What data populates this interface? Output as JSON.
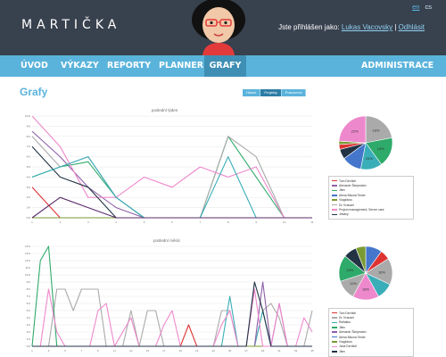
{
  "app": {
    "brand": "MARTIČKA",
    "languages": {
      "active": "en",
      "other": "cs"
    },
    "login_prefix": "Jste přihlášen jako:",
    "user_name": "Lukas Vacovsky",
    "separator": "|",
    "logout": "Odhlásit"
  },
  "nav": {
    "items": [
      "ÚVOD",
      "VÝKAZY",
      "REPORTY",
      "PLANNER",
      "GRAFY"
    ],
    "admin": "ADMINISTRACE",
    "active_index": 4
  },
  "page": {
    "title": "Grafy",
    "toggle": [
      "Hlavní",
      "Projekty",
      "Pracovníci"
    ],
    "toggle_active": 1
  },
  "colors": {
    "header_bg": "#38414e",
    "nav_bg": "#5ab3db",
    "nav_active": "#3f8fb5",
    "accent": "#5ab3db"
  },
  "chart_data": [
    {
      "type": "line",
      "title": "poslední týden",
      "grid": true,
      "x": [
        "1",
        "2",
        "3",
        "4",
        "5",
        "6",
        "7",
        "8",
        "9",
        "10",
        "11"
      ],
      "ylim": [
        0,
        10
      ],
      "y_ticks": [
        "0%",
        "1%",
        "2%",
        "3%",
        "4%",
        "5%",
        "6%",
        "7%",
        "8%",
        "9%",
        "10%"
      ],
      "series": [
        {
          "name": "Tom Derrikel",
          "color": "#dd3333",
          "values": [
            3,
            0,
            0,
            0,
            0,
            0,
            0,
            0,
            0,
            0,
            0
          ]
        },
        {
          "name": "Alexandr Šimpeatón",
          "color": "#8e5fa8",
          "values": [
            8.5,
            6,
            3,
            1,
            0,
            0,
            0,
            0,
            0,
            0,
            0
          ]
        },
        {
          "name": "Jitex",
          "color": "#2eaa6a",
          "values": [
            4,
            5,
            5.5,
            2,
            0,
            0,
            0,
            8,
            4,
            0,
            0
          ]
        },
        {
          "name": "Alena Bisová Tesler",
          "color": "#4477cc",
          "values": [
            0,
            0,
            0,
            0,
            0,
            0,
            0,
            0,
            0,
            0,
            0
          ]
        },
        {
          "name": "Viaglobus",
          "color": "#7a9a33",
          "values": [
            0,
            0,
            0,
            0,
            0,
            0,
            0,
            0,
            0,
            0,
            0
          ]
        },
        {
          "name": "Dr. Krausel",
          "color": "#aaaaaa",
          "values": [
            8,
            5,
            6,
            2,
            0,
            0,
            0,
            8,
            6,
            0,
            0
          ]
        },
        {
          "name": "Project management, Server care",
          "color": "#ee88cc",
          "values": [
            10,
            7,
            2,
            2,
            4,
            3,
            5,
            4,
            5,
            0,
            0
          ]
        },
        {
          "name": "Jesány",
          "color": "#223344",
          "values": [
            7,
            4,
            3,
            0,
            0,
            0,
            0,
            0,
            0,
            0,
            0
          ]
        }
      ],
      "extra_series": [
        {
          "color": "#3aaeb8",
          "values": [
            4,
            5,
            6,
            2,
            0,
            0,
            0,
            6,
            0,
            0,
            0
          ]
        },
        {
          "color": "#5a2a6a",
          "values": [
            0,
            2,
            1,
            0,
            0,
            0,
            0,
            0,
            0,
            0,
            0
          ]
        }
      ],
      "pie": [
        {
          "color": "#aaaaaa",
          "value": 22
        },
        {
          "color": "#2eaa6a",
          "value": 18
        },
        {
          "color": "#3aaeb8",
          "value": 13
        },
        {
          "color": "#4477cc",
          "value": 12
        },
        {
          "color": "#223344",
          "value": 6
        },
        {
          "color": "#dd3333",
          "value": 3
        },
        {
          "color": "#7a9a33",
          "value": 2
        },
        {
          "color": "#ee88cc",
          "value": 24
        }
      ],
      "pie_labels": [
        "22%",
        "18%",
        "13%",
        "24%"
      ]
    },
    {
      "type": "line",
      "title": "poslední měsíc",
      "grid": true,
      "x": [
        "1",
        "2",
        "3",
        "4",
        "5",
        "6",
        "7",
        "8",
        "9",
        "10",
        "11",
        "12",
        "13",
        "14",
        "15",
        "16",
        "17",
        "18",
        "19",
        "20",
        "21",
        "22",
        "23",
        "24",
        "25",
        "26",
        "27",
        "28",
        "29",
        "30",
        "31",
        "32",
        "33",
        "34",
        "35"
      ],
      "ylim": [
        0,
        14
      ],
      "y_ticks": [
        "0%",
        "1%",
        "2%",
        "3%",
        "4%",
        "5%",
        "6%",
        "7%",
        "8%",
        "9%",
        "10%",
        "11%",
        "12%",
        "13%",
        "14%"
      ],
      "series": [
        {
          "name": "Tom Derrikel",
          "color": "#dd3333",
          "values": [
            0,
            0,
            0,
            0,
            0,
            0,
            0,
            0,
            0,
            0,
            0,
            0,
            0,
            0,
            0,
            0,
            0,
            0,
            0,
            3,
            0,
            0,
            0,
            0,
            0,
            0,
            0,
            0,
            0,
            0,
            0,
            0,
            0,
            0,
            0
          ]
        },
        {
          "name": "Dr. Krausel",
          "color": "#aaaaaa",
          "values": [
            0,
            0,
            0,
            8,
            8,
            5,
            8,
            8,
            8,
            0,
            0,
            0,
            5,
            0,
            5,
            5,
            0,
            0,
            0,
            0,
            0,
            0,
            0,
            5,
            5,
            0,
            0,
            0,
            5,
            6,
            4,
            0,
            0,
            0,
            5
          ]
        },
        {
          "name": "Rellaitus",
          "color": "#3aaeb8",
          "values": [
            0,
            0,
            0,
            0,
            0,
            0,
            0,
            0,
            0,
            0,
            0,
            0,
            0,
            0,
            0,
            0,
            0,
            0,
            0,
            0,
            0,
            0,
            0,
            0,
            7,
            0,
            0,
            0,
            5,
            0,
            0,
            0,
            0,
            0,
            0
          ]
        },
        {
          "name": "Jitex",
          "color": "#2eaa6a",
          "values": [
            0,
            12,
            14,
            0,
            0,
            0,
            0,
            0,
            0,
            0,
            0,
            0,
            0,
            0,
            0,
            0,
            0,
            0,
            0,
            0,
            0,
            0,
            0,
            0,
            0,
            0,
            0,
            0,
            0,
            0,
            0,
            0,
            0,
            0,
            0
          ]
        },
        {
          "name": "Alexandr Šimpeatón",
          "color": "#8e5fa8",
          "values": [
            0,
            0,
            0,
            0,
            0,
            0,
            0,
            0,
            0,
            0,
            0,
            0,
            0,
            0,
            0,
            0,
            0,
            0,
            0,
            0,
            0,
            0,
            0,
            0,
            0,
            0,
            0,
            0,
            9,
            0,
            6,
            0,
            0,
            0,
            0
          ]
        },
        {
          "name": "Alena Bisová Tesler",
          "color": "#4477cc",
          "values": [
            0,
            0,
            0,
            0,
            0,
            0,
            0,
            0,
            0,
            0,
            0,
            0,
            0,
            0,
            0,
            0,
            0,
            0,
            0,
            0,
            0,
            0,
            0,
            0,
            0,
            0,
            0,
            0,
            0,
            0,
            0,
            0,
            0,
            0,
            0
          ]
        },
        {
          "name": "Viaglobus",
          "color": "#7a9a33",
          "values": [
            0,
            0,
            0,
            0,
            0,
            0,
            0,
            0,
            0,
            0,
            0,
            0,
            0,
            0,
            0,
            0,
            0,
            0,
            0,
            0,
            0,
            0,
            0,
            0,
            0,
            0,
            0,
            0,
            0,
            0,
            0,
            0,
            0,
            0,
            0
          ]
        },
        {
          "name": "Jana Derrikel",
          "color": "#ee88cc",
          "values": [
            0,
            0,
            8,
            2,
            0,
            0,
            0,
            0,
            5,
            6,
            0,
            2,
            4,
            0,
            0,
            0,
            3,
            5,
            0,
            0,
            0,
            0,
            0,
            3,
            5,
            0,
            0,
            8,
            0,
            0,
            6,
            0,
            0,
            4,
            2
          ]
        },
        {
          "name": "Jitex",
          "color": "#223344",
          "values": [
            0,
            0,
            0,
            0,
            0,
            0,
            0,
            0,
            0,
            0,
            0,
            0,
            0,
            0,
            0,
            0,
            0,
            0,
            0,
            0,
            0,
            0,
            0,
            0,
            0,
            0,
            0,
            9,
            5,
            0,
            0,
            0,
            0,
            0,
            0
          ]
        }
      ],
      "pie": [
        {
          "color": "#4477cc",
          "value": 10
        },
        {
          "color": "#dd3333",
          "value": 6
        },
        {
          "color": "#aaaaaa",
          "value": 16
        },
        {
          "color": "#3aaeb8",
          "value": 10
        },
        {
          "color": "#ee88cc",
          "value": 16
        },
        {
          "color": "#aaaaaa",
          "value": 12
        },
        {
          "color": "#2eaa6a",
          "value": 16
        },
        {
          "color": "#223344",
          "value": 8
        },
        {
          "color": "#7a9a33",
          "value": 6
        }
      ],
      "pie_labels": [
        "16%",
        "16%",
        "16%",
        "12%"
      ]
    }
  ]
}
